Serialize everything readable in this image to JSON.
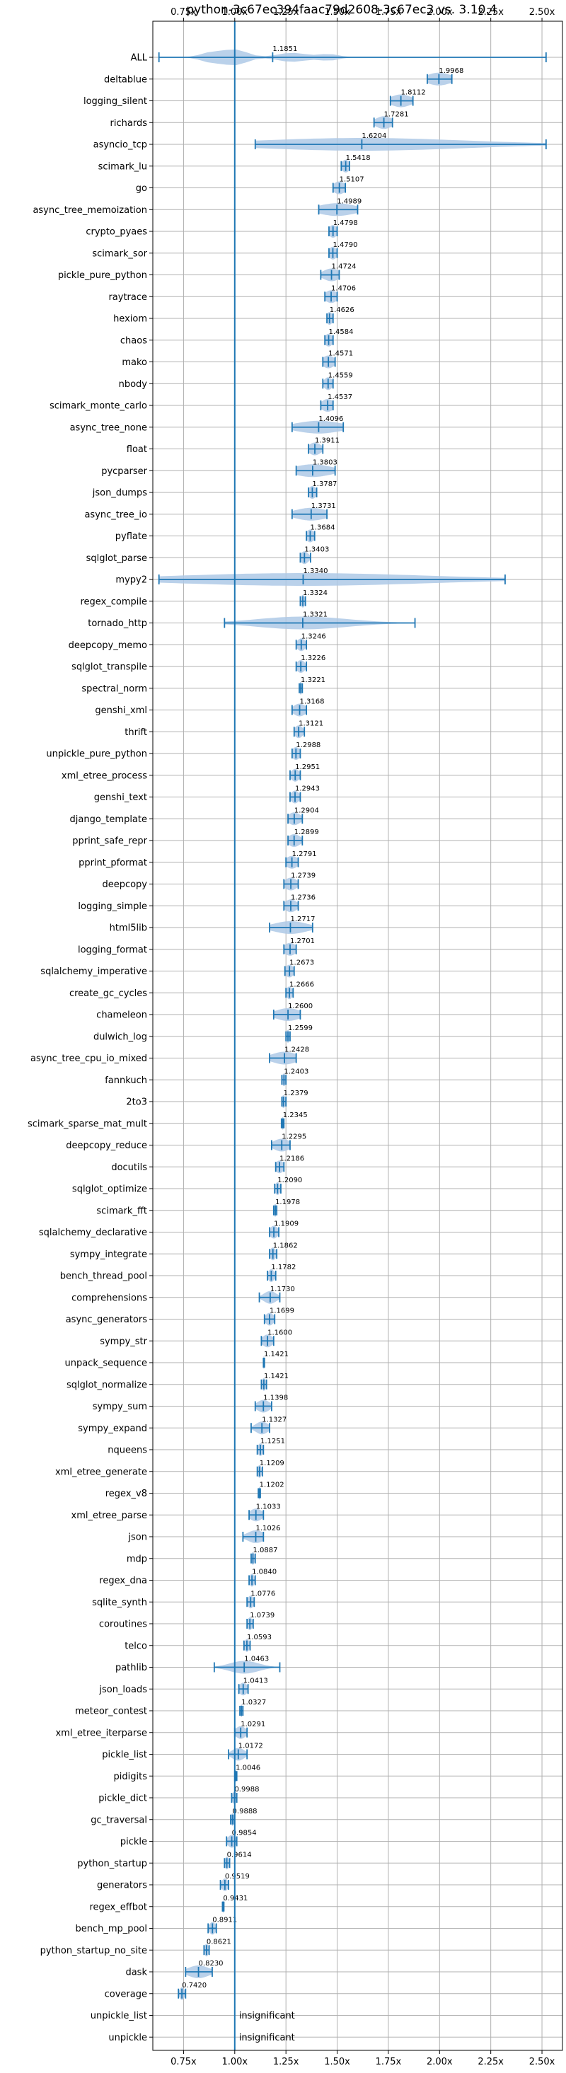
{
  "chart_data": {
    "type": "violin",
    "title": "python-3c67ec394faac79d2608-3c67ec3 vs. 3.10.4",
    "xlim": [
      0.6,
      2.6
    ],
    "xticks": [
      "0.75x",
      "1.00x",
      "1.25x",
      "1.50x",
      "1.75x",
      "2.00x",
      "2.25x",
      "2.50x"
    ],
    "xtick_values": [
      0.75,
      1.0,
      1.25,
      1.5,
      1.75,
      2.0,
      2.25,
      2.5
    ],
    "reference_line": 1.0,
    "grid": true,
    "colors": {
      "violin": "#aec9e6",
      "line": "#1f77b4",
      "grid": "#b0b0b0"
    },
    "insignificant_label": "insignificant",
    "benchmarks": [
      {
        "name": "ALL",
        "value": 1.1851,
        "label": "1.1851",
        "min": 0.63,
        "max": 2.52,
        "spread": 0.32,
        "kind": "all"
      },
      {
        "name": "deltablue",
        "value": 1.9968,
        "label": "1.9968",
        "min": 1.94,
        "max": 2.06,
        "spread": 0.06
      },
      {
        "name": "logging_silent",
        "value": 1.8112,
        "label": "1.8112",
        "min": 1.76,
        "max": 1.87,
        "spread": 0.05
      },
      {
        "name": "richards",
        "value": 1.7281,
        "label": "1.7281",
        "min": 1.68,
        "max": 1.77,
        "spread": 0.04
      },
      {
        "name": "asyncio_tcp",
        "value": 1.6204,
        "label": "1.6204",
        "min": 1.1,
        "max": 2.52,
        "spread": 0.5
      },
      {
        "name": "scimark_lu",
        "value": 1.5418,
        "label": "1.5418",
        "min": 1.52,
        "max": 1.56,
        "spread": 0.02
      },
      {
        "name": "go",
        "value": 1.5107,
        "label": "1.5107",
        "min": 1.48,
        "max": 1.54,
        "spread": 0.03
      },
      {
        "name": "async_tree_memoization",
        "value": 1.4989,
        "label": "1.4989",
        "min": 1.41,
        "max": 1.6,
        "spread": 0.09
      },
      {
        "name": "crypto_pyaes",
        "value": 1.4798,
        "label": "1.4798",
        "min": 1.46,
        "max": 1.5,
        "spread": 0.02
      },
      {
        "name": "scimark_sor",
        "value": 1.479,
        "label": "1.4790",
        "min": 1.46,
        "max": 1.5,
        "spread": 0.02
      },
      {
        "name": "pickle_pure_python",
        "value": 1.4724,
        "label": "1.4724",
        "min": 1.42,
        "max": 1.51,
        "spread": 0.04
      },
      {
        "name": "raytrace",
        "value": 1.4706,
        "label": "1.4706",
        "min": 1.44,
        "max": 1.5,
        "spread": 0.03
      },
      {
        "name": "hexiom",
        "value": 1.4626,
        "label": "1.4626",
        "min": 1.45,
        "max": 1.48,
        "spread": 0.015
      },
      {
        "name": "chaos",
        "value": 1.4584,
        "label": "1.4584",
        "min": 1.44,
        "max": 1.48,
        "spread": 0.02
      },
      {
        "name": "mako",
        "value": 1.4571,
        "label": "1.4571",
        "min": 1.43,
        "max": 1.49,
        "spread": 0.03
      },
      {
        "name": "nbody",
        "value": 1.4559,
        "label": "1.4559",
        "min": 1.43,
        "max": 1.48,
        "spread": 0.02
      },
      {
        "name": "scimark_monte_carlo",
        "value": 1.4537,
        "label": "1.4537",
        "min": 1.42,
        "max": 1.48,
        "spread": 0.03
      },
      {
        "name": "async_tree_none",
        "value": 1.4096,
        "label": "1.4096",
        "min": 1.28,
        "max": 1.53,
        "spread": 0.11
      },
      {
        "name": "float",
        "value": 1.3911,
        "label": "1.3911",
        "min": 1.36,
        "max": 1.43,
        "spread": 0.03
      },
      {
        "name": "pycparser",
        "value": 1.3803,
        "label": "1.3803",
        "min": 1.3,
        "max": 1.49,
        "spread": 0.09
      },
      {
        "name": "json_dumps",
        "value": 1.3787,
        "label": "1.3787",
        "min": 1.36,
        "max": 1.4,
        "spread": 0.02
      },
      {
        "name": "async_tree_io",
        "value": 1.3731,
        "label": "1.3731",
        "min": 1.28,
        "max": 1.45,
        "spread": 0.08
      },
      {
        "name": "pyflate",
        "value": 1.3684,
        "label": "1.3684",
        "min": 1.35,
        "max": 1.39,
        "spread": 0.02
      },
      {
        "name": "sqlglot_parse",
        "value": 1.3403,
        "label": "1.3403",
        "min": 1.32,
        "max": 1.37,
        "spread": 0.02
      },
      {
        "name": "mypy2",
        "value": 1.334,
        "label": "1.3340",
        "min": 0.63,
        "max": 2.32,
        "spread": 0.6
      },
      {
        "name": "regex_compile",
        "value": 1.3324,
        "label": "1.3324",
        "min": 1.32,
        "max": 1.345,
        "spread": 0.01
      },
      {
        "name": "tornado_http",
        "value": 1.3321,
        "label": "1.3321",
        "min": 0.95,
        "max": 1.88,
        "spread": 0.22
      },
      {
        "name": "deepcopy_memo",
        "value": 1.3246,
        "label": "1.3246",
        "min": 1.3,
        "max": 1.35,
        "spread": 0.02
      },
      {
        "name": "sqlglot_transpile",
        "value": 1.3226,
        "label": "1.3226",
        "min": 1.3,
        "max": 1.35,
        "spread": 0.02
      },
      {
        "name": "spectral_norm",
        "value": 1.3221,
        "label": "1.3221",
        "min": 1.315,
        "max": 1.33,
        "spread": 0.007
      },
      {
        "name": "genshi_xml",
        "value": 1.3168,
        "label": "1.3168",
        "min": 1.28,
        "max": 1.35,
        "spread": 0.03
      },
      {
        "name": "thrift",
        "value": 1.3121,
        "label": "1.3121",
        "min": 1.29,
        "max": 1.34,
        "spread": 0.02
      },
      {
        "name": "unpickle_pure_python",
        "value": 1.2988,
        "label": "1.2988",
        "min": 1.28,
        "max": 1.32,
        "spread": 0.02
      },
      {
        "name": "xml_etree_process",
        "value": 1.2951,
        "label": "1.2951",
        "min": 1.27,
        "max": 1.32,
        "spread": 0.02
      },
      {
        "name": "genshi_text",
        "value": 1.2943,
        "label": "1.2943",
        "min": 1.27,
        "max": 1.32,
        "spread": 0.02
      },
      {
        "name": "django_template",
        "value": 1.2904,
        "label": "1.2904",
        "min": 1.26,
        "max": 1.33,
        "spread": 0.03
      },
      {
        "name": "pprint_safe_repr",
        "value": 1.2899,
        "label": "1.2899",
        "min": 1.26,
        "max": 1.33,
        "spread": 0.03
      },
      {
        "name": "pprint_pformat",
        "value": 1.2791,
        "label": "1.2791",
        "min": 1.25,
        "max": 1.31,
        "spread": 0.03
      },
      {
        "name": "deepcopy",
        "value": 1.2739,
        "label": "1.2739",
        "min": 1.24,
        "max": 1.31,
        "spread": 0.03
      },
      {
        "name": "logging_simple",
        "value": 1.2736,
        "label": "1.2736",
        "min": 1.24,
        "max": 1.31,
        "spread": 0.03
      },
      {
        "name": "html5lib",
        "value": 1.2717,
        "label": "1.2717",
        "min": 1.17,
        "max": 1.38,
        "spread": 0.08
      },
      {
        "name": "logging_format",
        "value": 1.2701,
        "label": "1.2701",
        "min": 1.24,
        "max": 1.3,
        "spread": 0.03
      },
      {
        "name": "sqlalchemy_imperative",
        "value": 1.2673,
        "label": "1.2673",
        "min": 1.245,
        "max": 1.29,
        "spread": 0.02
      },
      {
        "name": "create_gc_cycles",
        "value": 1.2666,
        "label": "1.2666",
        "min": 1.25,
        "max": 1.285,
        "spread": 0.015
      },
      {
        "name": "chameleon",
        "value": 1.26,
        "label": "1.2600",
        "min": 1.19,
        "max": 1.32,
        "spread": 0.06
      },
      {
        "name": "dulwich_log",
        "value": 1.2599,
        "label": "1.2599",
        "min": 1.25,
        "max": 1.27,
        "spread": 0.01
      },
      {
        "name": "async_tree_cpu_io_mixed",
        "value": 1.2428,
        "label": "1.2428",
        "min": 1.17,
        "max": 1.3,
        "spread": 0.06
      },
      {
        "name": "fannkuch",
        "value": 1.2403,
        "label": "1.2403",
        "min": 1.23,
        "max": 1.25,
        "spread": 0.01
      },
      {
        "name": "2to3",
        "value": 1.2379,
        "label": "1.2379",
        "min": 1.23,
        "max": 1.25,
        "spread": 0.01
      },
      {
        "name": "scimark_sparse_mat_mult",
        "value": 1.2345,
        "label": "1.2345",
        "min": 1.228,
        "max": 1.24,
        "spread": 0.005
      },
      {
        "name": "deepcopy_reduce",
        "value": 1.2295,
        "label": "1.2295",
        "min": 1.18,
        "max": 1.27,
        "spread": 0.04
      },
      {
        "name": "docutils",
        "value": 1.2186,
        "label": "1.2186",
        "min": 1.2,
        "max": 1.24,
        "spread": 0.02
      },
      {
        "name": "sqlglot_optimize",
        "value": 1.209,
        "label": "1.2090",
        "min": 1.195,
        "max": 1.225,
        "spread": 0.012
      },
      {
        "name": "scimark_fft",
        "value": 1.1978,
        "label": "1.1978",
        "min": 1.19,
        "max": 1.205,
        "spread": 0.007
      },
      {
        "name": "sqlalchemy_declarative",
        "value": 1.1909,
        "label": "1.1909",
        "min": 1.17,
        "max": 1.215,
        "spread": 0.02
      },
      {
        "name": "sympy_integrate",
        "value": 1.1862,
        "label": "1.1862",
        "min": 1.17,
        "max": 1.205,
        "spread": 0.015
      },
      {
        "name": "bench_thread_pool",
        "value": 1.1782,
        "label": "1.1782",
        "min": 1.16,
        "max": 1.2,
        "spread": 0.015
      },
      {
        "name": "comprehensions",
        "value": 1.173,
        "label": "1.1730",
        "min": 1.12,
        "max": 1.22,
        "spread": 0.03
      },
      {
        "name": "async_generators",
        "value": 1.1699,
        "label": "1.1699",
        "min": 1.145,
        "max": 1.195,
        "spread": 0.02
      },
      {
        "name": "sympy_str",
        "value": 1.16,
        "label": "1.1600",
        "min": 1.13,
        "max": 1.19,
        "spread": 0.025
      },
      {
        "name": "unpack_sequence",
        "value": 1.1421,
        "label": "1.1421",
        "min": 1.14,
        "max": 1.145,
        "spread": 0.004
      },
      {
        "name": "sqlglot_normalize",
        "value": 1.1421,
        "label": "1.1421",
        "min": 1.13,
        "max": 1.155,
        "spread": 0.01
      },
      {
        "name": "sympy_sum",
        "value": 1.1398,
        "label": "1.1398",
        "min": 1.1,
        "max": 1.18,
        "spread": 0.03
      },
      {
        "name": "sympy_expand",
        "value": 1.1327,
        "label": "1.1327",
        "min": 1.08,
        "max": 1.17,
        "spread": 0.03
      },
      {
        "name": "nqueens",
        "value": 1.1251,
        "label": "1.1251",
        "min": 1.11,
        "max": 1.14,
        "spread": 0.012
      },
      {
        "name": "xml_etree_generate",
        "value": 1.1209,
        "label": "1.1209",
        "min": 1.11,
        "max": 1.135,
        "spread": 0.01
      },
      {
        "name": "regex_v8",
        "value": 1.1202,
        "label": "1.1202",
        "min": 1.115,
        "max": 1.125,
        "spread": 0.005
      },
      {
        "name": "xml_etree_parse",
        "value": 1.1033,
        "label": "1.1033",
        "min": 1.07,
        "max": 1.14,
        "spread": 0.03
      },
      {
        "name": "json",
        "value": 1.1026,
        "label": "1.1026",
        "min": 1.04,
        "max": 1.14,
        "spread": 0.04
      },
      {
        "name": "mdp",
        "value": 1.0887,
        "label": "1.0887",
        "min": 1.08,
        "max": 1.1,
        "spread": 0.008
      },
      {
        "name": "regex_dna",
        "value": 1.084,
        "label": "1.0840",
        "min": 1.07,
        "max": 1.1,
        "spread": 0.012
      },
      {
        "name": "sqlite_synth",
        "value": 1.0776,
        "label": "1.0776",
        "min": 1.06,
        "max": 1.095,
        "spread": 0.015
      },
      {
        "name": "coroutines",
        "value": 1.0739,
        "label": "1.0739",
        "min": 1.06,
        "max": 1.09,
        "spread": 0.012
      },
      {
        "name": "telco",
        "value": 1.0593,
        "label": "1.0593",
        "min": 1.045,
        "max": 1.075,
        "spread": 0.012
      },
      {
        "name": "pathlib",
        "value": 1.0463,
        "label": "1.0463",
        "min": 0.9,
        "max": 1.22,
        "spread": 0.07
      },
      {
        "name": "json_loads",
        "value": 1.0413,
        "label": "1.0413",
        "min": 1.02,
        "max": 1.065,
        "spread": 0.02
      },
      {
        "name": "meteor_contest",
        "value": 1.0327,
        "label": "1.0327",
        "min": 1.025,
        "max": 1.04,
        "spread": 0.006
      },
      {
        "name": "xml_etree_iterparse",
        "value": 1.0291,
        "label": "1.0291",
        "min": 1.0,
        "max": 1.06,
        "spread": 0.025
      },
      {
        "name": "pickle_list",
        "value": 1.0172,
        "label": "1.0172",
        "min": 0.97,
        "max": 1.06,
        "spread": 0.03
      },
      {
        "name": "pidigits",
        "value": 1.0046,
        "label": "1.0046",
        "min": 1.0,
        "max": 1.01,
        "spread": 0.004
      },
      {
        "name": "pickle_dict",
        "value": 0.9988,
        "label": "0.9988",
        "min": 0.985,
        "max": 1.01,
        "spread": 0.01
      },
      {
        "name": "gc_traversal",
        "value": 0.9888,
        "label": "0.9888",
        "min": 0.98,
        "max": 0.998,
        "spread": 0.007
      },
      {
        "name": "pickle",
        "value": 0.9854,
        "label": "0.9854",
        "min": 0.96,
        "max": 1.01,
        "spread": 0.02
      },
      {
        "name": "python_startup",
        "value": 0.9614,
        "label": "0.9614",
        "min": 0.95,
        "max": 0.975,
        "spread": 0.01
      },
      {
        "name": "generators",
        "value": 0.9519,
        "label": "0.9519",
        "min": 0.93,
        "max": 0.97,
        "spread": 0.015
      },
      {
        "name": "regex_effbot",
        "value": 0.9431,
        "label": "0.9431",
        "min": 0.94,
        "max": 0.947,
        "spread": 0.003
      },
      {
        "name": "bench_mp_pool",
        "value": 0.8911,
        "label": "0.8911",
        "min": 0.87,
        "max": 0.91,
        "spread": 0.015
      },
      {
        "name": "python_startup_no_site",
        "value": 0.8621,
        "label": "0.8621",
        "min": 0.85,
        "max": 0.875,
        "spread": 0.01
      },
      {
        "name": "dask",
        "value": 0.823,
        "label": "0.8230",
        "min": 0.76,
        "max": 0.89,
        "spread": 0.05
      },
      {
        "name": "coverage",
        "value": 0.742,
        "label": "0.7420",
        "min": 0.725,
        "max": 0.76,
        "spread": 0.012
      },
      {
        "name": "unpickle_list",
        "value": null,
        "label": "insignificant",
        "insignificant": true
      },
      {
        "name": "unpickle",
        "value": null,
        "label": "insignificant",
        "insignificant": true
      }
    ]
  }
}
